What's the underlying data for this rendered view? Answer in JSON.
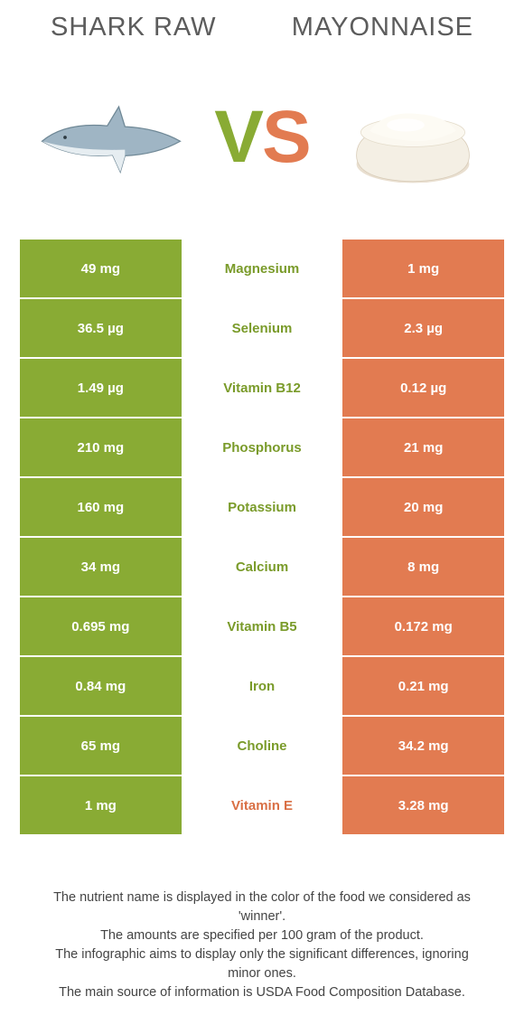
{
  "header": {
    "left_title": "SHARK RAW",
    "right_title": "MAYONNAISE"
  },
  "vs": {
    "v": "V",
    "s": "S"
  },
  "colors": {
    "green": "#89ab34",
    "orange": "#e27b51",
    "text_green": "#7a9b2a",
    "text_orange": "#d96f44"
  },
  "rows": [
    {
      "left": "49 mg",
      "name": "Magnesium",
      "right": "1 mg",
      "winner": "green"
    },
    {
      "left": "36.5 µg",
      "name": "Selenium",
      "right": "2.3 µg",
      "winner": "green"
    },
    {
      "left": "1.49 µg",
      "name": "Vitamin B12",
      "right": "0.12 µg",
      "winner": "green"
    },
    {
      "left": "210 mg",
      "name": "Phosphorus",
      "right": "21 mg",
      "winner": "green"
    },
    {
      "left": "160 mg",
      "name": "Potassium",
      "right": "20 mg",
      "winner": "green"
    },
    {
      "left": "34 mg",
      "name": "Calcium",
      "right": "8 mg",
      "winner": "green"
    },
    {
      "left": "0.695 mg",
      "name": "Vitamin B5",
      "right": "0.172 mg",
      "winner": "green"
    },
    {
      "left": "0.84 mg",
      "name": "Iron",
      "right": "0.21 mg",
      "winner": "green"
    },
    {
      "left": "65 mg",
      "name": "Choline",
      "right": "34.2 mg",
      "winner": "green"
    },
    {
      "left": "1 mg",
      "name": "Vitamin E",
      "right": "3.28 mg",
      "winner": "orange"
    }
  ],
  "footnote": {
    "l1": "The nutrient name is displayed in the color of the food we considered as 'winner'.",
    "l2": "The amounts are specified per 100 gram of the product.",
    "l3": "The infographic aims to display only the significant differences, ignoring minor ones.",
    "l4": "The main source of information is USDA Food Composition Database."
  }
}
